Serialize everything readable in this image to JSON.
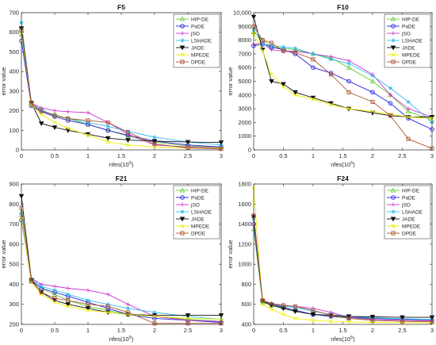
{
  "chart_data": [
    {
      "type": "line",
      "title": "F5",
      "xlabel": "nfes(10",
      "xlabel_sup": "5",
      "xlabel_end": ")",
      "ylabel": "error value",
      "xlim": [
        0,
        3
      ],
      "ylim": [
        0,
        700
      ],
      "xticks": [
        0,
        0.5,
        1,
        1.5,
        2,
        2.5,
        3
      ],
      "xtick_labels": [
        "0",
        "0.5",
        "1",
        "1.5",
        "2",
        "2.5",
        "3"
      ],
      "yticks": [
        0,
        100,
        200,
        300,
        400,
        500,
        600,
        700
      ],
      "ytick_labels": [
        "0",
        "100",
        "200",
        "300",
        "400",
        "500",
        "600",
        "700"
      ],
      "legend_position": "top-right",
      "series": [
        {
          "name": "HIP-DE",
          "color": "#66cc33",
          "marker": "triangle-up",
          "x": [
            0,
            0.15,
            0.3,
            0.5,
            0.7,
            1.0,
            1.3,
            1.6,
            2.0,
            2.5,
            3.0
          ],
          "y": [
            590,
            230,
            200,
            180,
            160,
            130,
            100,
            70,
            40,
            20,
            12
          ]
        },
        {
          "name": "PaDE",
          "color": "#2222dd",
          "marker": "circle",
          "x": [
            0,
            0.15,
            0.3,
            0.5,
            0.7,
            1.0,
            1.3,
            1.6,
            2.0,
            2.5,
            3.0
          ],
          "y": [
            555,
            225,
            195,
            170,
            150,
            130,
            100,
            75,
            45,
            25,
            15
          ]
        },
        {
          "name": "jSO",
          "color": "#cc33cc",
          "marker": "plus",
          "x": [
            0,
            0.15,
            0.3,
            0.5,
            0.7,
            1.0,
            1.3,
            1.6,
            2.0,
            2.5,
            3.0
          ],
          "y": [
            620,
            240,
            215,
            200,
            195,
            190,
            140,
            80,
            25,
            15,
            10
          ]
        },
        {
          "name": "LSHADE",
          "color": "#33bbee",
          "marker": "star",
          "x": [
            0,
            0.15,
            0.3,
            0.5,
            0.7,
            1.0,
            1.3,
            1.6,
            2.0,
            2.5,
            3.0
          ],
          "y": [
            650,
            235,
            205,
            175,
            160,
            140,
            120,
            95,
            65,
            40,
            25
          ]
        },
        {
          "name": "JADE",
          "color": "#111111",
          "marker": "triangle-down",
          "x": [
            0,
            0.15,
            0.3,
            0.5,
            0.7,
            1.0,
            1.3,
            1.6,
            2.0,
            2.5,
            3.0
          ],
          "y": [
            620,
            240,
            135,
            115,
            100,
            80,
            60,
            50,
            45,
            40,
            38
          ]
        },
        {
          "name": "MPEDE",
          "color": "#eeee00",
          "marker": "x",
          "x": [
            0,
            0.15,
            0.3,
            0.5,
            0.7,
            1.0,
            1.3,
            1.6,
            2.0,
            2.5,
            3.0
          ],
          "y": [
            600,
            230,
            180,
            140,
            110,
            75,
            40,
            25,
            15,
            10,
            8
          ]
        },
        {
          "name": "DPDE",
          "color": "#aa5533",
          "marker": "square",
          "x": [
            0,
            0.15,
            0.3,
            0.5,
            0.7,
            1.0,
            1.3,
            1.6,
            2.0,
            2.5,
            3.0
          ],
          "y": [
            610,
            235,
            200,
            175,
            160,
            150,
            140,
            90,
            30,
            10,
            5
          ]
        }
      ]
    },
    {
      "type": "line",
      "title": "F10",
      "xlabel": "nfes(10",
      "xlabel_sup": "5",
      "xlabel_end": ")",
      "ylabel": "error value",
      "xlim": [
        0,
        3
      ],
      "ylim": [
        0,
        10000
      ],
      "xticks": [
        0,
        0.5,
        1,
        1.5,
        2,
        2.5,
        3
      ],
      "xtick_labels": [
        "0",
        "0.5",
        "1",
        "1.5",
        "2",
        "2.5",
        "3"
      ],
      "yticks": [
        0,
        1000,
        2000,
        3000,
        4000,
        5000,
        6000,
        7000,
        8000,
        9000,
        10000
      ],
      "ytick_labels": [
        "0",
        "1000",
        "2000",
        "3000",
        "4000",
        "5000",
        "6000",
        "7000",
        "8000",
        "9000",
        "10,000"
      ],
      "legend_position": "top-right",
      "series": [
        {
          "name": "HIP-DE",
          "color": "#66cc33",
          "marker": "triangle-up",
          "x": [
            0,
            0.15,
            0.3,
            0.5,
            0.7,
            1.0,
            1.3,
            1.6,
            2.0,
            2.3,
            2.6,
            3.0
          ],
          "y": [
            8600,
            8000,
            7500,
            7400,
            7300,
            7000,
            6700,
            6000,
            5000,
            4000,
            2800,
            2200
          ]
        },
        {
          "name": "PaDE",
          "color": "#2222dd",
          "marker": "circle",
          "x": [
            0,
            0.15,
            0.3,
            0.5,
            0.7,
            1.0,
            1.3,
            1.6,
            2.0,
            2.3,
            2.6,
            3.0
          ],
          "y": [
            7600,
            7700,
            7500,
            7300,
            7000,
            6000,
            5600,
            5000,
            4200,
            3400,
            2300,
            1500
          ]
        },
        {
          "name": "jSO",
          "color": "#cc33cc",
          "marker": "plus",
          "x": [
            0,
            0.15,
            0.3,
            0.5,
            0.7,
            1.0,
            1.3,
            1.6,
            2.0,
            2.3,
            2.6,
            3.0
          ],
          "y": [
            7700,
            7800,
            7300,
            7200,
            7200,
            7000,
            6800,
            6500,
            5500,
            4000,
            3000,
            2400
          ]
        },
        {
          "name": "LSHADE",
          "color": "#33bbee",
          "marker": "star",
          "x": [
            0,
            0.15,
            0.3,
            0.5,
            0.7,
            1.0,
            1.3,
            1.6,
            2.0,
            2.3,
            2.6,
            3.0
          ],
          "y": [
            8800,
            7700,
            7600,
            7500,
            7400,
            7000,
            6600,
            6300,
            5400,
            4500,
            3500,
            2000
          ]
        },
        {
          "name": "JADE",
          "color": "#111111",
          "marker": "triangle-down",
          "x": [
            0,
            0.15,
            0.3,
            0.5,
            0.7,
            1.0,
            1.3,
            1.6,
            2.0,
            2.3,
            2.6,
            3.0
          ],
          "y": [
            9700,
            7300,
            5000,
            4800,
            4200,
            3800,
            3400,
            3000,
            2700,
            2500,
            2400,
            2400
          ]
        },
        {
          "name": "MPEDE",
          "color": "#eeee00",
          "marker": "x",
          "x": [
            0,
            0.15,
            0.3,
            0.5,
            0.7,
            1.0,
            1.3,
            1.6,
            2.0,
            2.3,
            2.6,
            3.0
          ],
          "y": [
            8500,
            7200,
            5500,
            4600,
            4000,
            3700,
            3300,
            3000,
            2800,
            2600,
            2400,
            2300
          ]
        },
        {
          "name": "DPDE",
          "color": "#aa5533",
          "marker": "square",
          "x": [
            0,
            0.15,
            0.3,
            0.5,
            0.7,
            1.0,
            1.3,
            1.6,
            2.0,
            2.3,
            2.6,
            3.0
          ],
          "y": [
            9000,
            8000,
            7800,
            7200,
            7100,
            6600,
            5500,
            4200,
            3500,
            2500,
            800,
            100
          ]
        }
      ]
    },
    {
      "type": "line",
      "title": "F21",
      "xlabel": "nfes(10",
      "xlabel_sup": "5",
      "xlabel_end": ")",
      "ylabel": "error value",
      "xlim": [
        0,
        3
      ],
      "ylim": [
        200,
        900
      ],
      "xticks": [
        0,
        0.5,
        1,
        1.5,
        2,
        2.5,
        3
      ],
      "xtick_labels": [
        "0",
        "0.5",
        "1",
        "1.5",
        "2",
        "2.5",
        "3"
      ],
      "yticks": [
        200,
        300,
        400,
        500,
        600,
        700,
        800,
        900
      ],
      "ytick_labels": [
        "200",
        "300",
        "400",
        "500",
        "600",
        "700",
        "800",
        "900"
      ],
      "legend_position": "top-right",
      "series": [
        {
          "name": "HIP-DE",
          "color": "#66cc33",
          "marker": "triangle-up",
          "x": [
            0,
            0.15,
            0.3,
            0.5,
            0.7,
            1.0,
            1.3,
            1.6,
            2.0,
            2.5,
            3.0
          ],
          "y": [
            760,
            420,
            380,
            350,
            320,
            290,
            270,
            250,
            240,
            225,
            215
          ]
        },
        {
          "name": "PaDE",
          "color": "#2222dd",
          "marker": "circle",
          "x": [
            0,
            0.15,
            0.3,
            0.5,
            0.7,
            1.0,
            1.3,
            1.6,
            2.0,
            2.5,
            3.0
          ],
          "y": [
            720,
            420,
            380,
            360,
            340,
            310,
            280,
            250,
            230,
            220,
            210
          ]
        },
        {
          "name": "jSO",
          "color": "#cc33cc",
          "marker": "plus",
          "x": [
            0,
            0.15,
            0.3,
            0.5,
            0.7,
            1.0,
            1.3,
            1.6,
            2.0,
            2.5,
            3.0
          ],
          "y": [
            740,
            430,
            400,
            390,
            380,
            370,
            350,
            300,
            240,
            220,
            215
          ]
        },
        {
          "name": "LSHADE",
          "color": "#33bbee",
          "marker": "star",
          "x": [
            0,
            0.15,
            0.3,
            0.5,
            0.7,
            1.0,
            1.3,
            1.6,
            2.0,
            2.5,
            3.0
          ],
          "y": [
            750,
            425,
            390,
            370,
            350,
            320,
            300,
            280,
            260,
            240,
            225
          ]
        },
        {
          "name": "JADE",
          "color": "#111111",
          "marker": "triangle-down",
          "x": [
            0,
            0.15,
            0.3,
            0.5,
            0.7,
            1.0,
            1.3,
            1.6,
            2.0,
            2.5,
            3.0
          ],
          "y": [
            840,
            420,
            360,
            320,
            300,
            280,
            260,
            250,
            245,
            245,
            245
          ]
        },
        {
          "name": "MPEDE",
          "color": "#eeee00",
          "marker": "x",
          "x": [
            0,
            0.15,
            0.3,
            0.5,
            0.7,
            1.0,
            1.3,
            1.6,
            2.0,
            2.5,
            3.0
          ],
          "y": [
            730,
            410,
            350,
            310,
            290,
            270,
            260,
            250,
            240,
            230,
            225
          ]
        },
        {
          "name": "DPDE",
          "color": "#aa5533",
          "marker": "square",
          "x": [
            0,
            0.15,
            0.3,
            0.5,
            0.7,
            1.0,
            1.3,
            1.6,
            2.0,
            2.5,
            3.0
          ],
          "y": [
            780,
            415,
            360,
            330,
            320,
            300,
            290,
            260,
            205,
            205,
            205
          ]
        }
      ]
    },
    {
      "type": "line",
      "title": "F24",
      "xlabel": "nfes(10",
      "xlabel_sup": "5",
      "xlabel_end": ")",
      "ylabel": "error value",
      "xlim": [
        0,
        3
      ],
      "ylim": [
        400,
        1800
      ],
      "xticks": [
        0,
        0.5,
        1,
        1.5,
        2,
        2.5,
        3
      ],
      "xtick_labels": [
        "0",
        "0.5",
        "1",
        "1.5",
        "2",
        "2.5",
        "3"
      ],
      "yticks": [
        400,
        600,
        800,
        1000,
        1200,
        1400,
        1600,
        1800
      ],
      "ytick_labels": [
        "400",
        "600",
        "800",
        "1000",
        "1200",
        "1400",
        "1600",
        "1800"
      ],
      "legend_position": "top-right",
      "series": [
        {
          "name": "HIP-DE",
          "color": "#66cc33",
          "marker": "triangle-up",
          "x": [
            0,
            0.15,
            0.3,
            0.5,
            0.7,
            1.0,
            1.3,
            1.6,
            2.0,
            2.5,
            3.0
          ],
          "y": [
            1350,
            620,
            590,
            570,
            540,
            500,
            480,
            460,
            450,
            440,
            435
          ]
        },
        {
          "name": "PaDE",
          "color": "#2222dd",
          "marker": "circle",
          "x": [
            0,
            0.15,
            0.3,
            0.5,
            0.7,
            1.0,
            1.3,
            1.6,
            2.0,
            2.5,
            3.0
          ],
          "y": [
            1400,
            630,
            600,
            570,
            540,
            500,
            480,
            470,
            460,
            450,
            445
          ]
        },
        {
          "name": "jSO",
          "color": "#cc33cc",
          "marker": "plus",
          "x": [
            0,
            0.15,
            0.3,
            0.5,
            0.7,
            1.0,
            1.3,
            1.6,
            2.0,
            2.5,
            3.0
          ],
          "y": [
            1500,
            640,
            610,
            590,
            580,
            560,
            520,
            470,
            450,
            440,
            435
          ]
        },
        {
          "name": "LSHADE",
          "color": "#33bbee",
          "marker": "star",
          "x": [
            0,
            0.15,
            0.3,
            0.5,
            0.7,
            1.0,
            1.3,
            1.6,
            2.0,
            2.5,
            3.0
          ],
          "y": [
            1450,
            625,
            600,
            580,
            570,
            530,
            500,
            480,
            465,
            455,
            450
          ]
        },
        {
          "name": "JADE",
          "color": "#111111",
          "marker": "triangle-down",
          "x": [
            0,
            0.15,
            0.3,
            0.5,
            0.7,
            1.0,
            1.3,
            1.6,
            2.0,
            2.5,
            3.0
          ],
          "y": [
            1470,
            630,
            590,
            560,
            530,
            500,
            490,
            480,
            475,
            470,
            470
          ]
        },
        {
          "name": "MPEDE",
          "color": "#eeee00",
          "marker": "x",
          "x": [
            0,
            0.15,
            0.3,
            0.5,
            0.7,
            1.0,
            1.3,
            1.6,
            2.0,
            2.5,
            3.0
          ],
          "y": [
            1760,
            600,
            550,
            500,
            460,
            440,
            430,
            425,
            420,
            415,
            415
          ]
        },
        {
          "name": "DPDE",
          "color": "#aa5533",
          "marker": "square",
          "x": [
            0,
            0.15,
            0.3,
            0.5,
            0.7,
            1.0,
            1.3,
            1.6,
            2.0,
            2.5,
            3.0
          ],
          "y": [
            1480,
            640,
            600,
            590,
            580,
            540,
            490,
            460,
            440,
            430,
            425
          ]
        }
      ]
    }
  ]
}
